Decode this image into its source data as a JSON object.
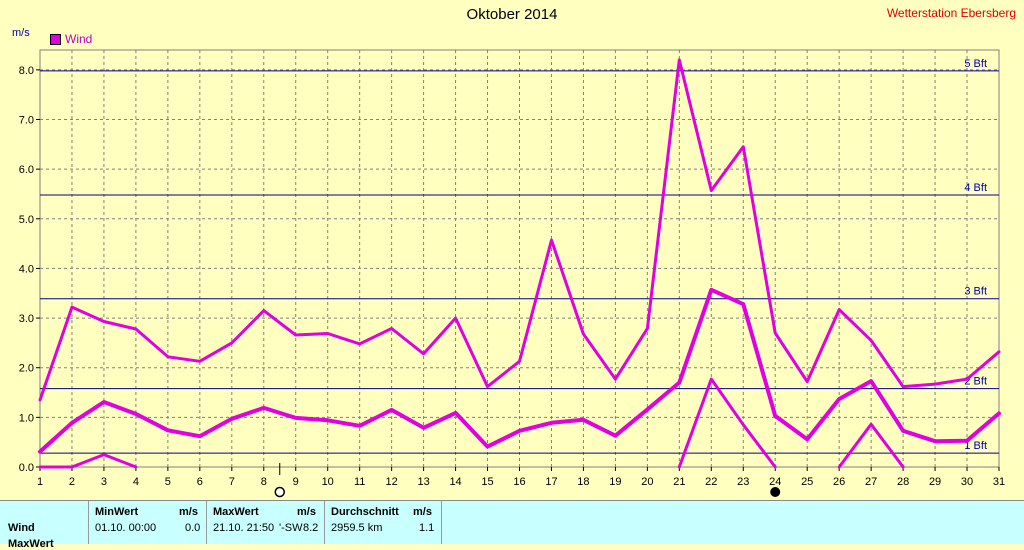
{
  "header": {
    "title": "Oktober 2014",
    "station": "Wetterstation Ebersberg",
    "unit": "m/s",
    "legend_label": "Wind"
  },
  "stats": {
    "row_label": "Wind",
    "row_label_2": "MaxWert",
    "min_header": "MinWert",
    "min_unit": "m/s",
    "min_time": "01.10.  00:00",
    "min_value": "0.0",
    "max_header": "MaxWert",
    "max_unit": "m/s",
    "max_time": "21.10.  21:50",
    "max_dir": "'-SW",
    "max_value": "8.2",
    "avg_header": "Durchschnitt",
    "avg_unit": "m/s",
    "avg_distance": "2959.5 km",
    "avg_value": "1.1"
  },
  "colors": {
    "background": "#ffffc0",
    "series": "#e000e0",
    "beaufort_line": "#000080",
    "grid": "#808080"
  },
  "chart_data": {
    "type": "line",
    "x": [
      1,
      2,
      3,
      4,
      5,
      6,
      7,
      8,
      9,
      10,
      11,
      12,
      13,
      14,
      15,
      16,
      17,
      18,
      19,
      20,
      21,
      22,
      23,
      24,
      25,
      26,
      27,
      28,
      29,
      30,
      31
    ],
    "xlim": [
      1,
      31
    ],
    "ylim": [
      0,
      8.4
    ],
    "yticks": [
      "0.0",
      "1.0",
      "2.0",
      "3.0",
      "4.0",
      "5.0",
      "6.0",
      "7.0",
      "8.0"
    ],
    "ylabel": "m/s",
    "grid": true,
    "legend": {
      "position": "top-left",
      "entries": [
        "Wind"
      ]
    },
    "series": [
      {
        "name": "Wind",
        "role": "max",
        "values": [
          1.35,
          3.22,
          2.93,
          2.78,
          2.22,
          2.13,
          2.5,
          3.15,
          2.66,
          2.69,
          2.48,
          2.79,
          2.28,
          3.0,
          1.62,
          2.13,
          4.57,
          2.68,
          1.77,
          2.79,
          8.2,
          5.57,
          6.45,
          2.7,
          1.72,
          3.17,
          2.55,
          1.62,
          1.67,
          1.77,
          2.32
        ]
      },
      {
        "name": "Wind",
        "role": "mean",
        "values": [
          0.31,
          0.89,
          1.31,
          1.07,
          0.74,
          0.62,
          0.97,
          1.19,
          0.99,
          0.94,
          0.83,
          1.15,
          0.79,
          1.09,
          0.41,
          0.73,
          0.89,
          0.95,
          0.63,
          1.16,
          1.7,
          3.57,
          3.28,
          1.03,
          0.56,
          1.37,
          1.73,
          0.73,
          0.52,
          0.53,
          1.08
        ]
      },
      {
        "name": "Wind",
        "role": "min",
        "values": [
          0.0,
          0.0,
          0.25,
          0.0,
          null,
          null,
          null,
          null,
          null,
          null,
          null,
          null,
          null,
          null,
          null,
          null,
          null,
          null,
          null,
          null,
          0.0,
          1.77,
          0.85,
          0.0,
          null,
          0.0,
          0.86,
          0.0,
          null,
          null,
          null
        ]
      }
    ],
    "beaufort": [
      {
        "label": "1 Bft",
        "value": 0.28
      },
      {
        "label": "2 Bft",
        "value": 1.58
      },
      {
        "label": "3 Bft",
        "value": 3.39
      },
      {
        "label": "4 Bft",
        "value": 5.48
      },
      {
        "label": "5 Bft",
        "value": 7.98
      }
    ],
    "markers": [
      {
        "symbol": "full-moon",
        "day": 8.5
      },
      {
        "symbol": "new-moon",
        "day": 24
      }
    ]
  }
}
